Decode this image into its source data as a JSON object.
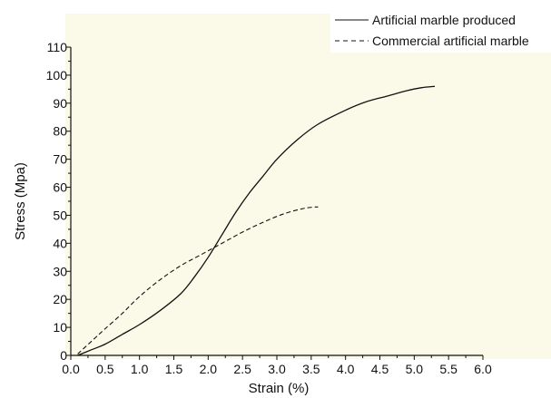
{
  "chart_data": {
    "type": "line",
    "xlabel": "Strain (%)",
    "ylabel": "Stress (Mpa)",
    "xlim": [
      0.0,
      6.0
    ],
    "ylim": [
      0,
      110
    ],
    "xticks": [
      "0.0",
      "0.5",
      "1.0",
      "1.5",
      "2.0",
      "2.5",
      "3.0",
      "3.5",
      "4.0",
      "4.5",
      "5.0",
      "5.5",
      "6.0"
    ],
    "yticks": [
      "0",
      "10",
      "20",
      "30",
      "40",
      "50",
      "60",
      "70",
      "80",
      "90",
      "100",
      "110"
    ],
    "legend_position": "top-right",
    "background_color": "#fbf9e7",
    "series": [
      {
        "name": "Artificial marble produced",
        "style": "solid",
        "x": [
          0.1,
          0.3,
          0.5,
          0.75,
          1.0,
          1.3,
          1.6,
          1.8,
          2.0,
          2.2,
          2.4,
          2.6,
          2.8,
          3.0,
          3.3,
          3.6,
          4.0,
          4.3,
          4.6,
          4.9,
          5.1,
          5.3
        ],
        "y": [
          0,
          2,
          4,
          7.5,
          11,
          16,
          22,
          28,
          35,
          43,
          51,
          58,
          64,
          70,
          77,
          82.5,
          87.5,
          90.5,
          92.5,
          94.5,
          95.5,
          96
        ]
      },
      {
        "name": "Commercial artificial marble",
        "style": "dashed",
        "x": [
          0.1,
          0.3,
          0.5,
          0.75,
          1.0,
          1.3,
          1.6,
          1.9,
          2.2,
          2.5,
          2.8,
          3.1,
          3.4,
          3.6
        ],
        "y": [
          0.5,
          5,
          9.5,
          15,
          21,
          27,
          32,
          36,
          40,
          44,
          47.5,
          50.5,
          52.5,
          53
        ]
      }
    ]
  }
}
